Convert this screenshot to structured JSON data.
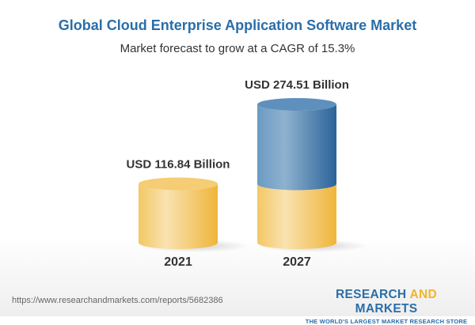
{
  "chart_data": {
    "type": "bar",
    "style": "3d-cylinder",
    "title": "Global Cloud Enterprise Application Software Market",
    "subtitle": "Market forecast to grow at a CAGR of 15.3%",
    "categories": [
      "2021",
      "2027"
    ],
    "values": [
      116.84,
      274.51
    ],
    "data_labels": [
      "USD 116.84 Billion",
      "USD 274.51 Billion"
    ],
    "unit": "USD Billion",
    "grid": false,
    "colors": {
      "base": "#f2c35a",
      "growth": "#3f7db4",
      "title": "#2a6ea8"
    }
  },
  "footer": {
    "url": "https://www.researchandmarkets.com/reports/5682386",
    "logo_line1_a": "RESEARCH ",
    "logo_line1_b": "AND",
    "logo_line1_c": " MARKETS",
    "logo_line2": "THE WORLD'S LARGEST MARKET RESEARCH STORE"
  }
}
